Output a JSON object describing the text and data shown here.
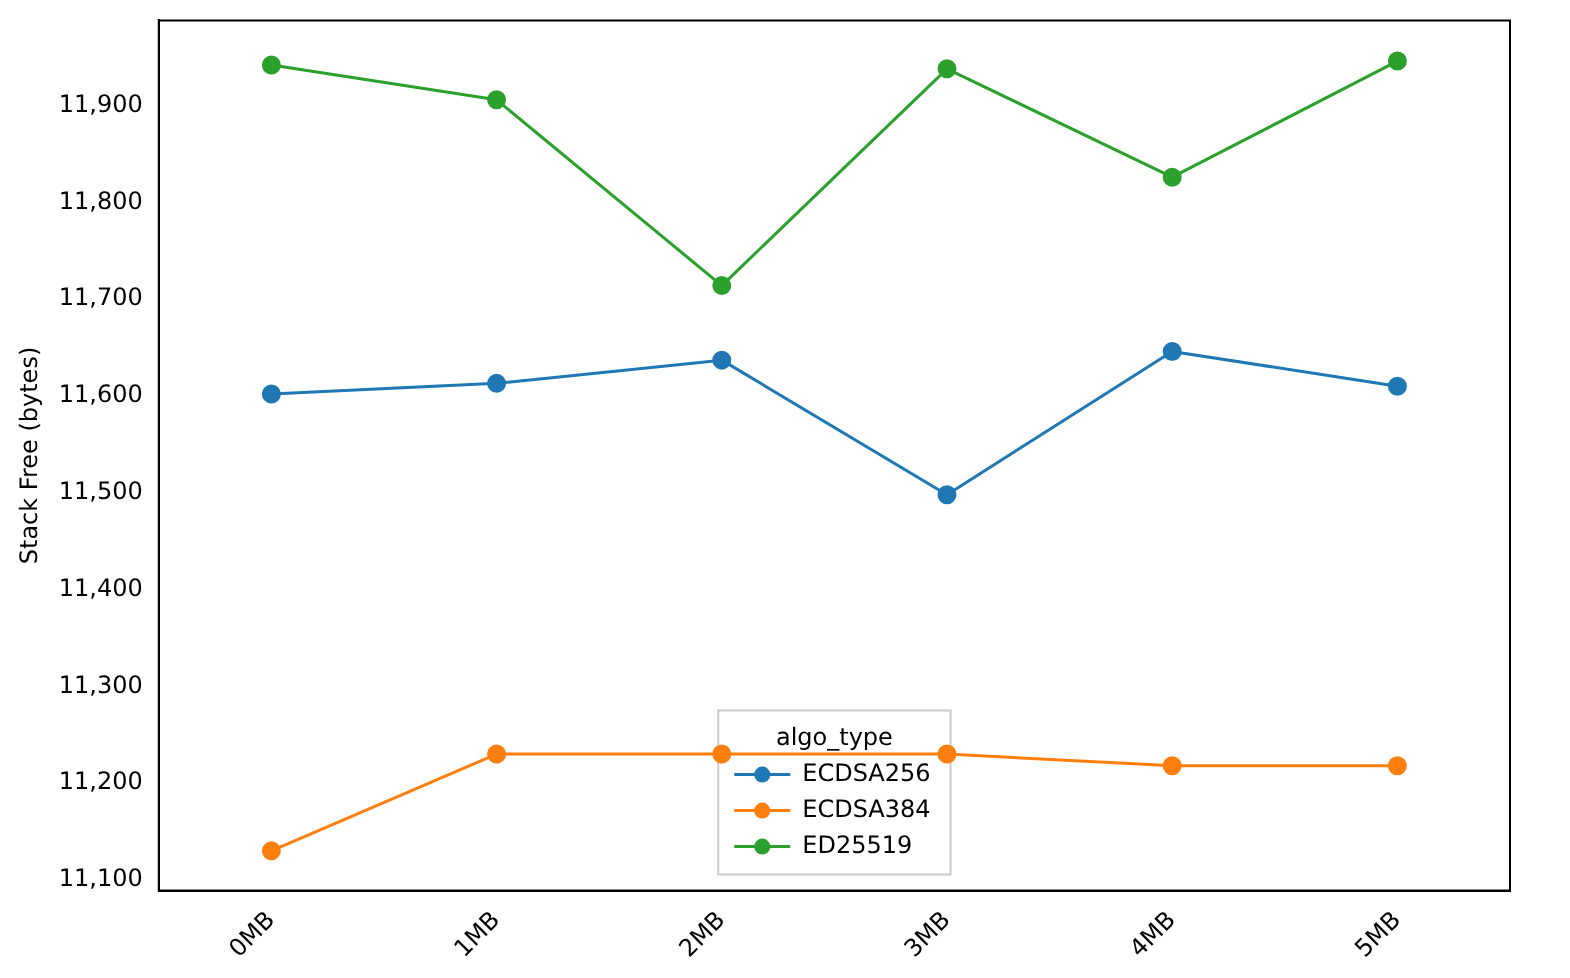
{
  "chart_data": {
    "type": "line",
    "ylabel": "Stack Free (bytes)",
    "legend_title": "algo_type",
    "categories": [
      "0MB",
      "1MB",
      "2MB",
      "3MB",
      "4MB",
      "5MB"
    ],
    "series": [
      {
        "name": "ECDSA256",
        "color": "#1f77b4",
        "values": [
          11602,
          11613,
          11637,
          11498,
          11646,
          11610
        ]
      },
      {
        "name": "ECDSA384",
        "color": "#ff7f0e",
        "values": [
          11130,
          11230,
          11230,
          11230,
          11218,
          11218
        ]
      },
      {
        "name": "ED25519",
        "color": "#2ca02c",
        "values": [
          11942,
          11906,
          11714,
          11938,
          11826,
          11946
        ]
      }
    ],
    "ylim": [
      11089,
      11988
    ],
    "yticks": [
      {
        "value": 11100,
        "label": "11,100"
      },
      {
        "value": 11200,
        "label": "11,200"
      },
      {
        "value": 11300,
        "label": "11,300"
      },
      {
        "value": 11400,
        "label": "11,400"
      },
      {
        "value": 11500,
        "label": "11,500"
      },
      {
        "value": 11600,
        "label": "11,600"
      },
      {
        "value": 11700,
        "label": "11,700"
      },
      {
        "value": 11800,
        "label": "11,800"
      },
      {
        "value": 11900,
        "label": "11,900"
      }
    ],
    "grid": false,
    "legend": "bottom",
    "marker": "circle",
    "line_style": "solid"
  }
}
